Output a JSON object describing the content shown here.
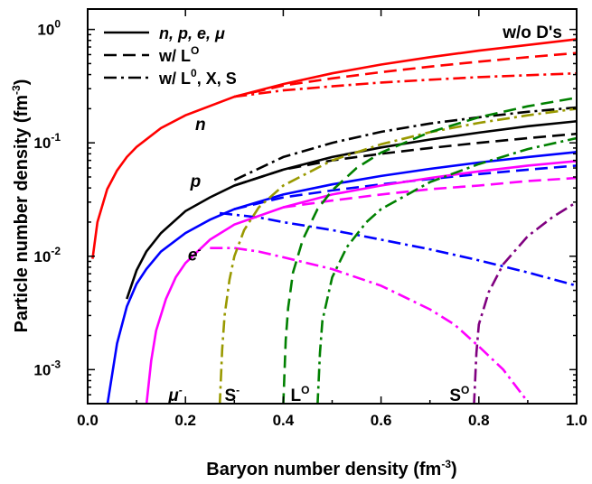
{
  "chart_data": {
    "type": "line",
    "xlabel": {
      "text": "Baryon number density (fm",
      "sup": "-3",
      "tail": ")"
    },
    "ylabel": {
      "text": "Particle number density (fm",
      "sup": "-3",
      "tail": ")"
    },
    "xlim": [
      0.0,
      1.0
    ],
    "ylim_log10": [
      -3.3,
      0.18
    ],
    "log_y": true,
    "x_ticks": [
      "0.0",
      "0.2",
      "0.4",
      "0.6",
      "0.8",
      "1.0"
    ],
    "x_tick_values": [
      0.0,
      0.2,
      0.4,
      0.6,
      0.8,
      1.0
    ],
    "y_ticks": [
      {
        "base": "10",
        "exp": "0",
        "value": 1
      },
      {
        "base": "10",
        "exp": "-1",
        "value": 0.1
      },
      {
        "base": "10",
        "exp": "-2",
        "value": 0.01
      },
      {
        "base": "10",
        "exp": "-3",
        "value": 0.001
      }
    ],
    "legend": [
      {
        "label": "n, p, e, μ",
        "dash": "solid"
      },
      {
        "label": "w/ L",
        "sup": "O",
        "dash": "dashed"
      },
      {
        "label": "w/ L",
        "sup": "0",
        "tail": ", X, S",
        "dash": "dashdot"
      }
    ],
    "corner_label": "w/o D's",
    "annotations": [
      {
        "text": "n",
        "sup": "",
        "x": 0.22,
        "y": 0.13,
        "italic": true
      },
      {
        "text": "p",
        "sup": "",
        "x": 0.21,
        "y": 0.041,
        "italic": true
      },
      {
        "text": "e",
        "sup": "-",
        "x": 0.205,
        "y": 0.0092,
        "italic": true
      },
      {
        "text": "μ",
        "sup": "-",
        "x": 0.165,
        "y": 0.00053,
        "italic": true
      },
      {
        "text": "S",
        "sup": "-",
        "x": 0.28,
        "y": 0.00053,
        "italic": false
      },
      {
        "text": "L",
        "sup": "O",
        "x": 0.415,
        "y": 0.00053,
        "italic": false
      },
      {
        "text": "S",
        "sup": "O",
        "x": 0.74,
        "y": 0.00053,
        "italic": false
      }
    ],
    "colors": {
      "n": "#ff0000",
      "p": "#000000",
      "e": "#0000ff",
      "mu": "#ff00ff",
      "Sminus": "#999900",
      "L0": "#008000",
      "S0": "#800080"
    },
    "series": [
      {
        "name": "n",
        "color": "n",
        "dash": "solid",
        "x": [
          0.01,
          0.02,
          0.04,
          0.06,
          0.08,
          0.1,
          0.15,
          0.2,
          0.3,
          0.4,
          0.5,
          0.6,
          0.7,
          0.8,
          0.9,
          1.0
        ],
        "y": [
          0.0095,
          0.02,
          0.039,
          0.057,
          0.075,
          0.092,
          0.135,
          0.175,
          0.255,
          0.33,
          0.41,
          0.49,
          0.57,
          0.65,
          0.73,
          0.82
        ]
      },
      {
        "name": "n w/ L0",
        "color": "n",
        "dash": "dashed",
        "x": [
          0.3,
          0.4,
          0.5,
          0.6,
          0.7,
          0.8,
          0.9,
          1.0
        ],
        "y": [
          0.255,
          0.32,
          0.37,
          0.42,
          0.47,
          0.52,
          0.57,
          0.62
        ]
      },
      {
        "name": "n w/ L0 X S",
        "color": "n",
        "dash": "dashdot",
        "x": [
          0.3,
          0.4,
          0.5,
          0.6,
          0.7,
          0.8,
          0.9,
          1.0
        ],
        "y": [
          0.255,
          0.29,
          0.315,
          0.34,
          0.36,
          0.38,
          0.395,
          0.41
        ]
      },
      {
        "name": "p",
        "color": "p",
        "dash": "solid",
        "x": [
          0.08,
          0.1,
          0.12,
          0.15,
          0.2,
          0.25,
          0.3,
          0.4,
          0.5,
          0.6,
          0.7,
          0.8,
          0.9,
          1.0
        ],
        "y": [
          0.0042,
          0.0075,
          0.011,
          0.016,
          0.025,
          0.033,
          0.042,
          0.058,
          0.075,
          0.091,
          0.107,
          0.123,
          0.14,
          0.155
        ]
      },
      {
        "name": "p w/ L0",
        "color": "p",
        "dash": "dashed",
        "x": [
          0.3,
          0.4,
          0.5,
          0.6,
          0.7,
          0.8,
          0.9,
          1.0
        ],
        "y": [
          0.042,
          0.058,
          0.07,
          0.08,
          0.09,
          0.1,
          0.11,
          0.12
        ]
      },
      {
        "name": "p w/ L0 X S",
        "color": "p",
        "dash": "dashdot",
        "x": [
          0.3,
          0.4,
          0.5,
          0.6,
          0.7,
          0.8,
          0.9,
          1.0
        ],
        "y": [
          0.047,
          0.075,
          0.1,
          0.125,
          0.148,
          0.168,
          0.188,
          0.205
        ]
      },
      {
        "name": "e",
        "color": "e",
        "dash": "solid",
        "x": [
          0.04,
          0.06,
          0.08,
          0.1,
          0.12,
          0.15,
          0.2,
          0.25,
          0.3,
          0.4,
          0.5,
          0.6,
          0.7,
          0.8,
          0.9,
          1.0
        ],
        "y": [
          0.00048,
          0.0017,
          0.0036,
          0.0057,
          0.0077,
          0.011,
          0.016,
          0.021,
          0.026,
          0.035,
          0.043,
          0.051,
          0.059,
          0.067,
          0.075,
          0.083
        ]
      },
      {
        "name": "e w/ L0",
        "color": "e",
        "dash": "dashed",
        "x": [
          0.3,
          0.4,
          0.5,
          0.6,
          0.7,
          0.8,
          0.9,
          1.0
        ],
        "y": [
          0.026,
          0.033,
          0.038,
          0.043,
          0.048,
          0.053,
          0.058,
          0.063
        ]
      },
      {
        "name": "e w/ L0 X S",
        "color": "e",
        "dash": "dashdot",
        "x": [
          0.27,
          0.35,
          0.4,
          0.5,
          0.6,
          0.7,
          0.8,
          0.9,
          1.0
        ],
        "y": [
          0.024,
          0.022,
          0.02,
          0.017,
          0.014,
          0.0115,
          0.0092,
          0.0072,
          0.0055
        ]
      },
      {
        "name": "mu",
        "color": "mu",
        "dash": "solid",
        "x": [
          0.12,
          0.13,
          0.14,
          0.16,
          0.18,
          0.2,
          0.25,
          0.3,
          0.4,
          0.5,
          0.6,
          0.7,
          0.8,
          0.9,
          1.0
        ],
        "y": [
          0.00048,
          0.0012,
          0.0022,
          0.0042,
          0.0065,
          0.0087,
          0.014,
          0.019,
          0.027,
          0.035,
          0.042,
          0.049,
          0.056,
          0.063,
          0.069
        ]
      },
      {
        "name": "mu w/ L0",
        "color": "mu",
        "dash": "dashed",
        "x": [
          0.4,
          0.5,
          0.6,
          0.7,
          0.8,
          0.9,
          1.0
        ],
        "y": [
          0.027,
          0.031,
          0.035,
          0.039,
          0.042,
          0.046,
          0.049
        ]
      },
      {
        "name": "mu w/ L0 X S",
        "color": "mu",
        "dash": "dashdot",
        "x": [
          0.25,
          0.3,
          0.35,
          0.4,
          0.5,
          0.6,
          0.7,
          0.75,
          0.8,
          0.85,
          0.9
        ],
        "y": [
          0.0118,
          0.0118,
          0.011,
          0.0098,
          0.0077,
          0.0055,
          0.0034,
          0.0025,
          0.0016,
          0.001,
          0.00052
        ]
      },
      {
        "name": "S-",
        "color": "Sminus",
        "dash": "dashdot",
        "x": [
          0.27,
          0.275,
          0.28,
          0.29,
          0.3,
          0.32,
          0.35,
          0.4,
          0.5,
          0.6,
          0.7,
          0.8,
          0.9,
          1.0
        ],
        "y": [
          0.00048,
          0.0015,
          0.003,
          0.0062,
          0.01,
          0.017,
          0.027,
          0.042,
          0.07,
          0.097,
          0.124,
          0.15,
          0.175,
          0.2
        ]
      },
      {
        "name": "L0 w/ L0",
        "color": "L0",
        "dash": "dashed",
        "x": [
          0.4,
          0.405,
          0.41,
          0.42,
          0.44,
          0.47,
          0.5,
          0.55,
          0.6,
          0.7,
          0.8,
          0.9,
          1.0
        ],
        "y": [
          0.00048,
          0.0018,
          0.0035,
          0.0072,
          0.014,
          0.026,
          0.038,
          0.06,
          0.082,
          0.124,
          0.168,
          0.21,
          0.25
        ]
      },
      {
        "name": "L0 w/ L0 X S",
        "color": "L0",
        "dash": "dashdot",
        "x": [
          0.47,
          0.475,
          0.48,
          0.5,
          0.53,
          0.57,
          0.6,
          0.7,
          0.8,
          0.9,
          1.0
        ],
        "y": [
          0.00048,
          0.0014,
          0.0027,
          0.0065,
          0.012,
          0.02,
          0.026,
          0.045,
          0.065,
          0.088,
          0.11
        ]
      },
      {
        "name": "S0",
        "color": "S0",
        "dash": "dashdot",
        "x": [
          0.79,
          0.795,
          0.8,
          0.82,
          0.85,
          0.9,
          0.95,
          1.0
        ],
        "y": [
          0.00048,
          0.0014,
          0.0025,
          0.0048,
          0.0085,
          0.015,
          0.022,
          0.03
        ]
      }
    ]
  }
}
